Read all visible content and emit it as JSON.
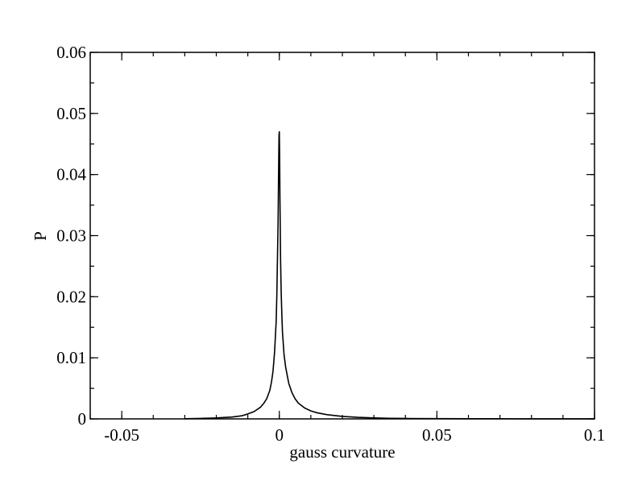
{
  "chart_data": {
    "type": "line",
    "xlabel": "gauss curvature",
    "ylabel": "P",
    "xlim": [
      -0.06,
      0.1
    ],
    "ylim": [
      0,
      0.06
    ],
    "x_ticks": [
      -0.05,
      0,
      0.05,
      0.1
    ],
    "x_tick_labels": [
      "-0.05",
      "0",
      "0.05",
      "0.1"
    ],
    "y_ticks": [
      0,
      0.01,
      0.02,
      0.03,
      0.04,
      0.05,
      0.06
    ],
    "y_tick_labels": [
      "0",
      "0.01",
      "0.02",
      "0.03",
      "0.04",
      "0.05",
      "0.06"
    ],
    "x_minor_step": 0.01,
    "y_minor_step": 0.005,
    "grid": false,
    "series": [
      {
        "color": "#000000",
        "x": [
          -0.03,
          -0.025,
          -0.02,
          -0.015,
          -0.012,
          -0.01,
          -0.008,
          -0.006,
          -0.005,
          -0.004,
          -0.003,
          -0.0025,
          -0.002,
          -0.0015,
          -0.001,
          -0.0008,
          -0.0006,
          -0.0004,
          -0.0003,
          -0.0002,
          -0.0001,
          0.0,
          0.0001,
          0.0002,
          0.0003,
          0.0004,
          0.0006,
          0.0008,
          0.001,
          0.0015,
          0.002,
          0.003,
          0.004,
          0.005,
          0.006,
          0.008,
          0.01,
          0.012,
          0.015,
          0.02,
          0.025,
          0.03,
          0.035,
          0.04,
          0.05,
          0.06,
          0.07,
          0.08,
          0.09,
          0.1
        ],
        "y": [
          3e-05,
          8e-05,
          0.00015,
          0.0003,
          0.0005,
          0.0008,
          0.0012,
          0.0019,
          0.0025,
          0.0033,
          0.0047,
          0.006,
          0.0078,
          0.011,
          0.016,
          0.02,
          0.026,
          0.032,
          0.037,
          0.042,
          0.0465,
          0.047,
          0.043,
          0.036,
          0.031,
          0.026,
          0.0205,
          0.017,
          0.0142,
          0.0105,
          0.0085,
          0.0058,
          0.0043,
          0.0033,
          0.0026,
          0.0018,
          0.0013,
          0.001,
          0.0007,
          0.0004,
          0.00025,
          0.00016,
          0.0001,
          7e-05,
          4e-05,
          3e-05,
          2e-05,
          1.5e-05,
          1e-05,
          1e-05
        ]
      }
    ]
  }
}
